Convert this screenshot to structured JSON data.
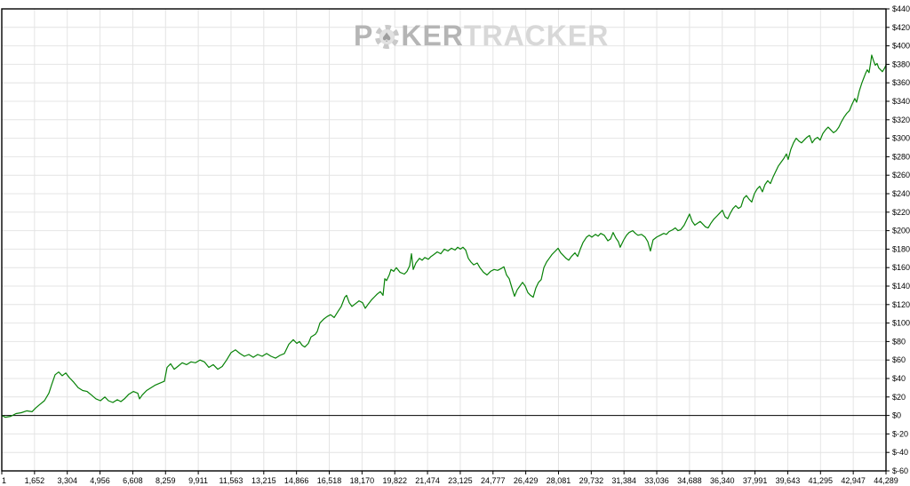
{
  "watermark": {
    "part1": "P",
    "chip_symbol": "♠",
    "part2": "KER",
    "part3": "TRACKER"
  },
  "axes": {
    "x_tick_labels": [
      "1",
      "1,652",
      "3,304",
      "4,956",
      "6,608",
      "8,259",
      "9,911",
      "11,563",
      "13,215",
      "14,866",
      "16,518",
      "18,170",
      "19,822",
      "21,474",
      "23,125",
      "24,777",
      "26,429",
      "28,081",
      "29,732",
      "31,384",
      "33,036",
      "34,688",
      "36,340",
      "37,991",
      "39,643",
      "41,295",
      "42,947",
      "44,289"
    ],
    "y_tick_labels": [
      "$440",
      "$420",
      "$400",
      "$380",
      "$360",
      "$340",
      "$320",
      "$300",
      "$280",
      "$260",
      "$240",
      "$220",
      "$200",
      "$180",
      "$160",
      "$140",
      "$120",
      "$100",
      "$80",
      "$60",
      "$40",
      "$20",
      "$0",
      "$-20",
      "$-40",
      "$-60"
    ]
  },
  "chart_data": {
    "type": "line",
    "title": "",
    "xlabel": "",
    "ylabel": "",
    "xlim": [
      1,
      44289
    ],
    "ylim": [
      -60,
      440
    ],
    "y_tick_step": 20,
    "grid": true,
    "legend": null,
    "zero_line": true,
    "series": [
      {
        "points": [
          [
            1,
            0
          ],
          [
            178,
            -2
          ],
          [
            445,
            -1
          ],
          [
            712,
            2
          ],
          [
            979,
            3
          ],
          [
            1246,
            5
          ],
          [
            1513,
            4
          ],
          [
            1691,
            8
          ],
          [
            1914,
            12
          ],
          [
            2137,
            16
          ],
          [
            2359,
            24
          ],
          [
            2493,
            33
          ],
          [
            2671,
            44
          ],
          [
            2849,
            47
          ],
          [
            3027,
            43
          ],
          [
            3205,
            46
          ],
          [
            3383,
            41
          ],
          [
            3605,
            36
          ],
          [
            3828,
            30
          ],
          [
            4050,
            27
          ],
          [
            4273,
            26
          ],
          [
            4496,
            22
          ],
          [
            4718,
            18
          ],
          [
            4941,
            16
          ],
          [
            5163,
            20
          ],
          [
            5341,
            16
          ],
          [
            5564,
            14
          ],
          [
            5786,
            17
          ],
          [
            5964,
            15
          ],
          [
            6142,
            18
          ],
          [
            6365,
            23
          ],
          [
            6588,
            26
          ],
          [
            6810,
            24
          ],
          [
            6899,
            18
          ],
          [
            7033,
            22
          ],
          [
            7255,
            27
          ],
          [
            7478,
            30
          ],
          [
            7700,
            33
          ],
          [
            7923,
            35
          ],
          [
            8145,
            37
          ],
          [
            8279,
            52
          ],
          [
            8457,
            56
          ],
          [
            8635,
            50
          ],
          [
            8813,
            53
          ],
          [
            9036,
            57
          ],
          [
            9258,
            55
          ],
          [
            9481,
            58
          ],
          [
            9703,
            57
          ],
          [
            9926,
            60
          ],
          [
            10148,
            58
          ],
          [
            10371,
            52
          ],
          [
            10594,
            55
          ],
          [
            10816,
            50
          ],
          [
            11039,
            53
          ],
          [
            11261,
            60
          ],
          [
            11484,
            68
          ],
          [
            11706,
            71
          ],
          [
            11929,
            67
          ],
          [
            12151,
            64
          ],
          [
            12374,
            66
          ],
          [
            12596,
            63
          ],
          [
            12819,
            66
          ],
          [
            13041,
            64
          ],
          [
            13264,
            67
          ],
          [
            13487,
            64
          ],
          [
            13709,
            62
          ],
          [
            13932,
            65
          ],
          [
            14154,
            67
          ],
          [
            14377,
            77
          ],
          [
            14599,
            82
          ],
          [
            14777,
            78
          ],
          [
            14911,
            80
          ],
          [
            15044,
            76
          ],
          [
            15178,
            74
          ],
          [
            15356,
            78
          ],
          [
            15490,
            85
          ],
          [
            15712,
            88
          ],
          [
            15801,
            91
          ],
          [
            15935,
            100
          ],
          [
            16113,
            104
          ],
          [
            16291,
            107
          ],
          [
            16469,
            109
          ],
          [
            16647,
            106
          ],
          [
            16825,
            112
          ],
          [
            17003,
            118
          ],
          [
            17181,
            128
          ],
          [
            17270,
            130
          ],
          [
            17404,
            122
          ],
          [
            17537,
            118
          ],
          [
            17715,
            121
          ],
          [
            17893,
            124
          ],
          [
            18071,
            122
          ],
          [
            18205,
            116
          ],
          [
            18338,
            120
          ],
          [
            18516,
            125
          ],
          [
            18650,
            128
          ],
          [
            18784,
            131
          ],
          [
            18962,
            134
          ],
          [
            19095,
            130
          ],
          [
            19184,
            148
          ],
          [
            19273,
            146
          ],
          [
            19407,
            152
          ],
          [
            19496,
            158
          ],
          [
            19630,
            156
          ],
          [
            19763,
            160
          ],
          [
            19941,
            155
          ],
          [
            20164,
            153
          ],
          [
            20297,
            156
          ],
          [
            20431,
            162
          ],
          [
            20520,
            175
          ],
          [
            20609,
            158
          ],
          [
            20742,
            165
          ],
          [
            20920,
            170
          ],
          [
            21054,
            168
          ],
          [
            21187,
            171
          ],
          [
            21365,
            169
          ],
          [
            21499,
            172
          ],
          [
            21633,
            174
          ],
          [
            21811,
            177
          ],
          [
            21989,
            175
          ],
          [
            22167,
            180
          ],
          [
            22345,
            178
          ],
          [
            22523,
            181
          ],
          [
            22701,
            179
          ],
          [
            22834,
            182
          ],
          [
            22968,
            180
          ],
          [
            23101,
            182
          ],
          [
            23235,
            179
          ],
          [
            23369,
            170
          ],
          [
            23502,
            166
          ],
          [
            23636,
            163
          ],
          [
            23814,
            165
          ],
          [
            23947,
            160
          ],
          [
            24125,
            155
          ],
          [
            24303,
            152
          ],
          [
            24481,
            156
          ],
          [
            24659,
            158
          ],
          [
            24837,
            157
          ],
          [
            25015,
            159
          ],
          [
            25149,
            161
          ],
          [
            25282,
            152
          ],
          [
            25416,
            148
          ],
          [
            25594,
            135
          ],
          [
            25683,
            129
          ],
          [
            25816,
            136
          ],
          [
            25950,
            140
          ],
          [
            26083,
            144
          ],
          [
            26217,
            140
          ],
          [
            26350,
            133
          ],
          [
            26484,
            130
          ],
          [
            26617,
            128
          ],
          [
            26751,
            138
          ],
          [
            26884,
            144
          ],
          [
            27018,
            147
          ],
          [
            27151,
            160
          ],
          [
            27285,
            166
          ],
          [
            27418,
            170
          ],
          [
            27552,
            174
          ],
          [
            27685,
            177
          ],
          [
            27863,
            181
          ],
          [
            27997,
            176
          ],
          [
            28130,
            173
          ],
          [
            28264,
            170
          ],
          [
            28397,
            168
          ],
          [
            28531,
            172
          ],
          [
            28709,
            176
          ],
          [
            28842,
            172
          ],
          [
            28976,
            180
          ],
          [
            29109,
            187
          ],
          [
            29287,
            193
          ],
          [
            29421,
            195
          ],
          [
            29554,
            193
          ],
          [
            29732,
            196
          ],
          [
            29866,
            194
          ],
          [
            29999,
            197
          ],
          [
            30177,
            195
          ],
          [
            30355,
            189
          ],
          [
            30489,
            191
          ],
          [
            30622,
            198
          ],
          [
            30756,
            192
          ],
          [
            30889,
            188
          ],
          [
            30978,
            182
          ],
          [
            31156,
            190
          ],
          [
            31290,
            195
          ],
          [
            31423,
            198
          ],
          [
            31601,
            200
          ],
          [
            31735,
            197
          ],
          [
            31868,
            195
          ],
          [
            32046,
            196
          ],
          [
            32224,
            193
          ],
          [
            32358,
            188
          ],
          [
            32491,
            178
          ],
          [
            32625,
            190
          ],
          [
            32803,
            193
          ],
          [
            32981,
            195
          ],
          [
            33159,
            197
          ],
          [
            33292,
            196
          ],
          [
            33426,
            199
          ],
          [
            33604,
            201
          ],
          [
            33737,
            203
          ],
          [
            33871,
            200
          ],
          [
            34004,
            201
          ],
          [
            34182,
            206
          ],
          [
            34316,
            212
          ],
          [
            34449,
            218
          ],
          [
            34583,
            210
          ],
          [
            34716,
            206
          ],
          [
            34850,
            208
          ],
          [
            34983,
            210
          ],
          [
            35117,
            207
          ],
          [
            35250,
            204
          ],
          [
            35384,
            203
          ],
          [
            35517,
            208
          ],
          [
            35651,
            212
          ],
          [
            35829,
            216
          ],
          [
            35962,
            219
          ],
          [
            36096,
            222
          ],
          [
            36229,
            215
          ],
          [
            36363,
            213
          ],
          [
            36496,
            219
          ],
          [
            36630,
            224
          ],
          [
            36763,
            227
          ],
          [
            36897,
            224
          ],
          [
            37030,
            226
          ],
          [
            37164,
            235
          ],
          [
            37297,
            238
          ],
          [
            37431,
            234
          ],
          [
            37564,
            231
          ],
          [
            37698,
            240
          ],
          [
            37831,
            245
          ],
          [
            37965,
            248
          ],
          [
            38098,
            242
          ],
          [
            38232,
            250
          ],
          [
            38365,
            254
          ],
          [
            38499,
            251
          ],
          [
            38632,
            258
          ],
          [
            38766,
            264
          ],
          [
            38899,
            270
          ],
          [
            39033,
            274
          ],
          [
            39166,
            278
          ],
          [
            39300,
            283
          ],
          [
            39389,
            277
          ],
          [
            39522,
            288
          ],
          [
            39656,
            295
          ],
          [
            39789,
            300
          ],
          [
            39923,
            297
          ],
          [
            40056,
            295
          ],
          [
            40190,
            298
          ],
          [
            40323,
            301
          ],
          [
            40457,
            303
          ],
          [
            40590,
            295
          ],
          [
            40724,
            299
          ],
          [
            40857,
            301
          ],
          [
            40991,
            298
          ],
          [
            41124,
            305
          ],
          [
            41258,
            309
          ],
          [
            41391,
            312
          ],
          [
            41525,
            309
          ],
          [
            41658,
            306
          ],
          [
            41792,
            308
          ],
          [
            41925,
            312
          ],
          [
            42059,
            318
          ],
          [
            42192,
            323
          ],
          [
            42326,
            327
          ],
          [
            42459,
            330
          ],
          [
            42593,
            337
          ],
          [
            42726,
            343
          ],
          [
            42815,
            339
          ],
          [
            42949,
            351
          ],
          [
            43082,
            360
          ],
          [
            43171,
            365
          ],
          [
            43260,
            370
          ],
          [
            43349,
            374
          ],
          [
            43438,
            371
          ],
          [
            43527,
            383
          ],
          [
            43572,
            390
          ],
          [
            43661,
            384
          ],
          [
            43750,
            379
          ],
          [
            43839,
            381
          ],
          [
            43928,
            376
          ],
          [
            44017,
            374
          ],
          [
            44106,
            372
          ],
          [
            44195,
            375
          ],
          [
            44289,
            379
          ]
        ]
      }
    ]
  },
  "colors": {
    "line": "#078207",
    "grid": "#e4e4e4",
    "axis": "#000000",
    "background": "#ffffff",
    "watermark_dark": "#b5b5b5",
    "watermark_light": "#d8d8d8",
    "chip_body": "#c9c9c9",
    "chip_center": "#e2e2e2",
    "chip_spade": "#9e9e9e"
  }
}
